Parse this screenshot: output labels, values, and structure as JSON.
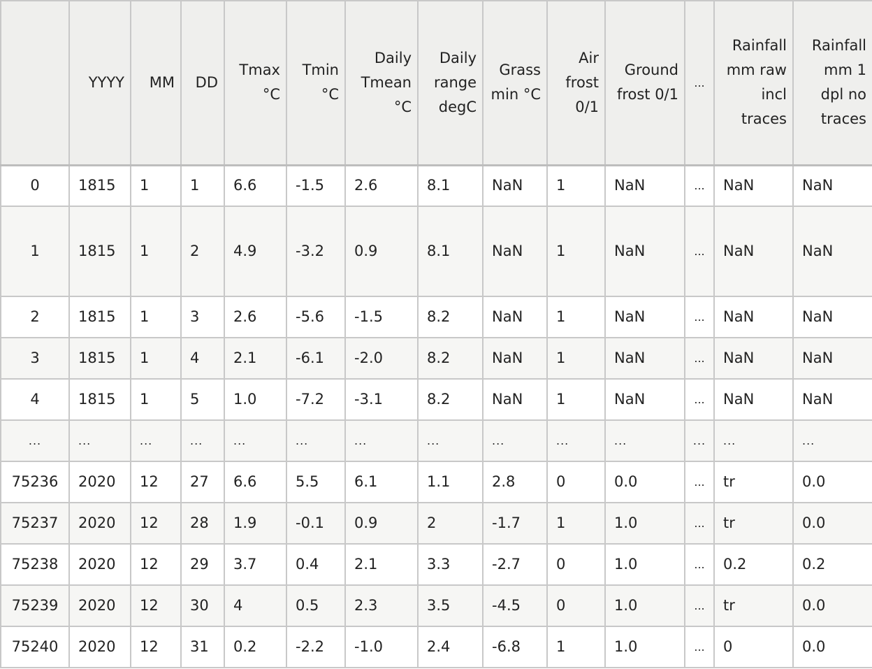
{
  "table": {
    "index_header": "",
    "columns": [
      "YYYY",
      "MM",
      "DD",
      "Tmax °C",
      "Tmin °C",
      "Daily Tmean °C",
      "Daily range degC",
      "Grass min °C",
      "Air frost 0/1",
      "Ground frost 0/1",
      "...",
      "Rainfall mm raw incl traces",
      "Rainfall mm 1 dpl no traces"
    ],
    "rows": [
      {
        "index": "0",
        "cells": [
          "1815",
          "1",
          "1",
          "6.6",
          "-1.5",
          "2.6",
          "8.1",
          "NaN",
          "1",
          "NaN",
          "...",
          "NaN",
          "NaN"
        ]
      },
      {
        "index": "1",
        "cells": [
          "1815",
          "1",
          "2",
          "4.9",
          "-3.2",
          "0.9",
          "8.1",
          "NaN",
          "1",
          "NaN",
          "...",
          "NaN",
          "NaN"
        ]
      },
      {
        "index": "2",
        "cells": [
          "1815",
          "1",
          "3",
          "2.6",
          "-5.6",
          "-1.5",
          "8.2",
          "NaN",
          "1",
          "NaN",
          "...",
          "NaN",
          "NaN"
        ]
      },
      {
        "index": "3",
        "cells": [
          "1815",
          "1",
          "4",
          "2.1",
          "-6.1",
          "-2.0",
          "8.2",
          "NaN",
          "1",
          "NaN",
          "...",
          "NaN",
          "NaN"
        ]
      },
      {
        "index": "4",
        "cells": [
          "1815",
          "1",
          "5",
          "1.0",
          "-7.2",
          "-3.1",
          "8.2",
          "NaN",
          "1",
          "NaN",
          "...",
          "NaN",
          "NaN"
        ]
      },
      {
        "index": "...",
        "cells": [
          "...",
          "...",
          "...",
          "...",
          "...",
          "...",
          "...",
          "...",
          "...",
          "...",
          "...",
          "...",
          "..."
        ]
      },
      {
        "index": "75236",
        "cells": [
          "2020",
          "12",
          "27",
          "6.6",
          "5.5",
          "6.1",
          "1.1",
          "2.8",
          "0",
          "0.0",
          "...",
          "tr",
          "0.0"
        ]
      },
      {
        "index": "75237",
        "cells": [
          "2020",
          "12",
          "28",
          "1.9",
          "-0.1",
          "0.9",
          "2",
          "-1.7",
          "1",
          "1.0",
          "...",
          "tr",
          "0.0"
        ]
      },
      {
        "index": "75238",
        "cells": [
          "2020",
          "12",
          "29",
          "3.7",
          "0.4",
          "2.1",
          "3.3",
          "-2.7",
          "0",
          "1.0",
          "...",
          "0.2",
          "0.2"
        ]
      },
      {
        "index": "75239",
        "cells": [
          "2020",
          "12",
          "30",
          "4",
          "0.5",
          "2.3",
          "3.5",
          "-4.5",
          "0",
          "1.0",
          "...",
          "tr",
          "0.0"
        ]
      },
      {
        "index": "75240",
        "cells": [
          "2020",
          "12",
          "31",
          "0.2",
          "-2.2",
          "-1.0",
          "2.4",
          "-6.8",
          "1",
          "1.0",
          "...",
          "0",
          "0.0"
        ]
      }
    ]
  }
}
